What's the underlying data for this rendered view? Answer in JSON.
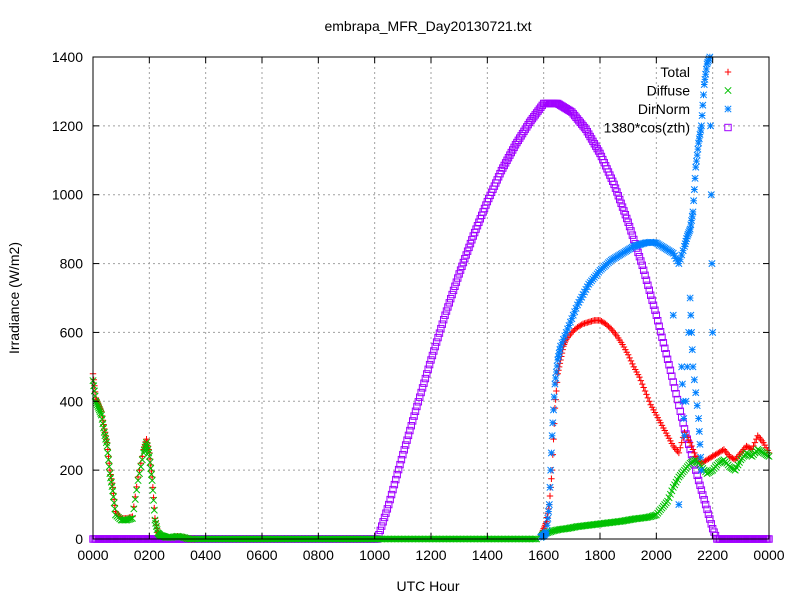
{
  "chart_data": {
    "type": "scatter",
    "title": "embrapa_MFR_Day20130721.txt",
    "xlabel": "UTC Hour",
    "ylabel": "Irradiance (W/m2)",
    "xlim": [
      0,
      24
    ],
    "ylim": [
      0,
      1400
    ],
    "grid": true,
    "legend_position": "top-right",
    "xticks": [
      {
        "value": 0,
        "label": "0000"
      },
      {
        "value": 2,
        "label": "0200"
      },
      {
        "value": 4,
        "label": "0400"
      },
      {
        "value": 6,
        "label": "0600"
      },
      {
        "value": 8,
        "label": "0800"
      },
      {
        "value": 10,
        "label": "1000"
      },
      {
        "value": 12,
        "label": "1200"
      },
      {
        "value": 14,
        "label": "1400"
      },
      {
        "value": 16,
        "label": "1600"
      },
      {
        "value": 18,
        "label": "1800"
      },
      {
        "value": 20,
        "label": "2000"
      },
      {
        "value": 22,
        "label": "2200"
      },
      {
        "value": 24,
        "label": "0000"
      }
    ],
    "yticks": [
      0,
      200,
      400,
      600,
      800,
      1000,
      1200,
      1400
    ],
    "series": [
      {
        "name": "Total",
        "marker": "plus",
        "color": "#ff0000",
        "x": [
          0.0,
          0.1,
          0.2,
          0.3,
          0.4,
          0.5,
          0.6,
          0.7,
          0.8,
          1.0,
          1.2,
          1.4,
          1.6,
          1.8,
          1.9,
          2.0,
          2.1,
          2.2,
          2.3,
          2.4,
          2.5,
          2.6,
          2.8,
          3.0,
          3.2,
          3.4,
          3.6,
          15.9,
          16.0,
          16.1,
          16.2,
          16.3,
          16.4,
          16.5,
          16.6,
          16.7,
          16.8,
          17.0,
          17.2,
          17.4,
          17.6,
          17.8,
          18.0,
          18.2,
          18.4,
          18.6,
          18.8,
          19.0,
          19.2,
          19.4,
          19.6,
          19.8,
          20.0,
          20.2,
          20.4,
          20.6,
          20.8,
          21.0,
          21.2,
          21.4,
          21.6,
          21.8,
          22.0,
          22.2,
          22.4,
          22.6,
          22.8,
          23.0,
          23.2,
          23.4,
          23.6,
          23.8,
          24.0
        ],
        "y": [
          480,
          410,
          390,
          370,
          320,
          280,
          200,
          150,
          80,
          60,
          60,
          65,
          180,
          260,
          290,
          250,
          180,
          60,
          20,
          10,
          8,
          5,
          5,
          8,
          5,
          0,
          0,
          10,
          30,
          50,
          100,
          200,
          380,
          480,
          520,
          560,
          580,
          600,
          615,
          625,
          630,
          635,
          635,
          625,
          610,
          590,
          565,
          535,
          500,
          470,
          430,
          390,
          360,
          330,
          300,
          270,
          250,
          310,
          280,
          240,
          220,
          230,
          240,
          250,
          260,
          240,
          230,
          250,
          270,
          260,
          300,
          280,
          250
        ]
      },
      {
        "name": "Diffuse",
        "marker": "cross",
        "color": "#00c000",
        "x": [
          0.0,
          0.1,
          0.2,
          0.3,
          0.4,
          0.5,
          0.6,
          0.7,
          0.8,
          1.0,
          1.2,
          1.4,
          1.6,
          1.8,
          1.9,
          2.0,
          2.1,
          2.2,
          2.3,
          2.4,
          2.5,
          2.6,
          2.8,
          3.0,
          3.2,
          3.4,
          3.6,
          15.9,
          16.0,
          16.2,
          16.4,
          16.6,
          16.8,
          17.0,
          17.2,
          17.4,
          17.6,
          17.8,
          18.0,
          18.2,
          18.4,
          18.6,
          18.8,
          19.0,
          19.2,
          19.4,
          19.6,
          19.8,
          20.0,
          20.2,
          20.4,
          20.6,
          20.8,
          21.0,
          21.2,
          21.4,
          21.6,
          21.8,
          22.0,
          22.2,
          22.4,
          22.6,
          22.8,
          23.0,
          23.2,
          23.4,
          23.6,
          23.8,
          24.0
        ],
        "y": [
          460,
          400,
          380,
          360,
          310,
          270,
          190,
          140,
          70,
          55,
          55,
          60,
          170,
          250,
          280,
          240,
          170,
          55,
          18,
          10,
          8,
          5,
          5,
          8,
          5,
          0,
          0,
          5,
          15,
          20,
          25,
          28,
          30,
          33,
          36,
          38,
          40,
          42,
          44,
          46,
          48,
          50,
          52,
          55,
          58,
          60,
          62,
          65,
          70,
          90,
          110,
          150,
          180,
          200,
          220,
          230,
          210,
          190,
          200,
          220,
          230,
          210,
          200,
          230,
          250,
          240,
          260,
          250,
          240
        ]
      },
      {
        "name": "DirNorm",
        "marker": "star",
        "color": "#0080ff",
        "x": [
          15.9,
          16.0,
          16.1,
          16.2,
          16.3,
          16.4,
          16.5,
          16.6,
          16.8,
          17.0,
          17.2,
          17.4,
          17.6,
          17.8,
          18.0,
          18.2,
          18.4,
          18.6,
          18.8,
          19.0,
          19.2,
          19.4,
          19.6,
          19.8,
          20.0,
          20.2,
          20.4,
          20.6,
          20.8,
          21.0,
          21.1,
          21.2,
          21.3,
          21.4,
          21.5,
          21.6,
          21.7,
          21.8,
          21.9,
          22.0,
          20.6,
          20.9,
          21.0,
          21.2,
          21.3,
          21.5,
          21.6,
          20.8
        ],
        "y": [
          5,
          10,
          20,
          100,
          300,
          450,
          520,
          560,
          600,
          640,
          680,
          710,
          740,
          760,
          780,
          795,
          810,
          820,
          830,
          840,
          850,
          855,
          860,
          862,
          860,
          850,
          840,
          830,
          800,
          850,
          880,
          900,
          950,
          1080,
          1150,
          1200,
          1320,
          1380,
          1400,
          600,
          650,
          500,
          300,
          700,
          500,
          350,
          200,
          100
        ]
      },
      {
        "name": "1380*cos(zth)",
        "marker": "square",
        "color": "#a000ff",
        "sunrise": 10.1,
        "sunset": 22.15,
        "x": [
          10.1,
          10.5,
          11.0,
          11.5,
          12.0,
          12.5,
          13.0,
          13.5,
          14.0,
          14.5,
          15.0,
          15.5,
          16.0,
          16.5,
          17.0,
          17.5,
          18.0,
          18.5,
          19.0,
          19.5,
          20.0,
          20.5,
          21.0,
          21.5,
          22.0,
          22.15
        ],
        "y": [
          0,
          100,
          245,
          385,
          520,
          650,
          770,
          880,
          980,
          1070,
          1145,
          1210,
          1265,
          1265,
          1240,
          1190,
          1120,
          1030,
          920,
          795,
          650,
          490,
          320,
          170,
          30,
          0
        ]
      }
    ]
  }
}
